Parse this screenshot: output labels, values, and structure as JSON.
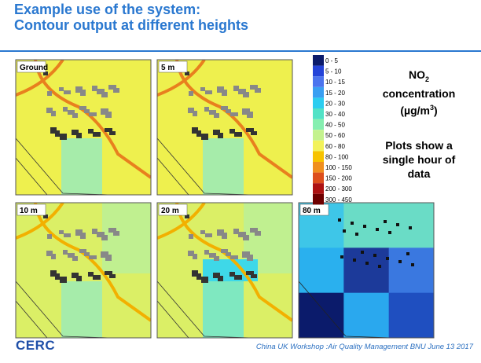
{
  "header": {
    "title_lines": [
      "Example use of the system:",
      "Contour output at different heights"
    ]
  },
  "panels": [
    {
      "label": "Ground"
    },
    {
      "label": "5 m"
    },
    {
      "label": "10 m"
    },
    {
      "label": "20 m"
    },
    {
      "label": "80 m"
    }
  ],
  "legend": [
    {
      "label": "0 - 5",
      "color": "#0b1b6b"
    },
    {
      "label": "5 - 10",
      "color": "#2443d8"
    },
    {
      "label": "10 - 15",
      "color": "#4c74ee"
    },
    {
      "label": "15 - 20",
      "color": "#3a9ff2"
    },
    {
      "label": "20 - 30",
      "color": "#2ccdf0"
    },
    {
      "label": "30 - 40",
      "color": "#52e2c6"
    },
    {
      "label": "40 - 50",
      "color": "#86efb0"
    },
    {
      "label": "50 - 60",
      "color": "#c4f28e"
    },
    {
      "label": "60 - 80",
      "color": "#f2f25a"
    },
    {
      "label": "80 - 100",
      "color": "#f7c300"
    },
    {
      "label": "100 - 150",
      "color": "#f08f1e"
    },
    {
      "label": "150 - 200",
      "color": "#dd4f1c"
    },
    {
      "label": "200 - 300",
      "color": "#ad1212"
    },
    {
      "label": "300 - 450",
      "color": "#6e0000"
    }
  ],
  "side_text": {
    "species": "NO",
    "species_sub": "2",
    "line2": "concentration",
    "unit_open": "(µg/m",
    "unit_sup": "3",
    "unit_close": ")",
    "note_lines": [
      "Plots show a",
      "single hour of",
      "data"
    ]
  },
  "footer": {
    "logo": "CERC",
    "text": "China UK  Workshop :Air Quality Management BNU June  13 2017"
  }
}
